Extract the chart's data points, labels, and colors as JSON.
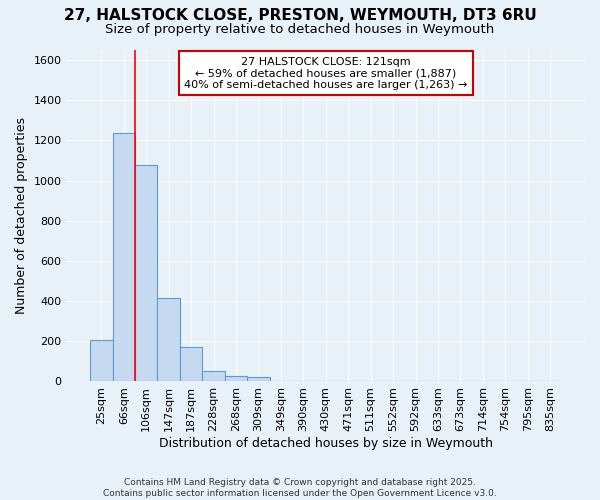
{
  "title": "27, HALSTOCK CLOSE, PRESTON, WEYMOUTH, DT3 6RU",
  "subtitle": "Size of property relative to detached houses in Weymouth",
  "xlabel": "Distribution of detached houses by size in Weymouth",
  "ylabel": "Number of detached properties",
  "categories": [
    "25sqm",
    "66sqm",
    "106sqm",
    "147sqm",
    "187sqm",
    "228sqm",
    "268sqm",
    "309sqm",
    "349sqm",
    "390sqm",
    "430sqm",
    "471sqm",
    "511sqm",
    "552sqm",
    "592sqm",
    "633sqm",
    "673sqm",
    "714sqm",
    "754sqm",
    "795sqm",
    "835sqm"
  ],
  "values": [
    205,
    1235,
    1080,
    415,
    170,
    50,
    25,
    20,
    0,
    0,
    0,
    0,
    0,
    0,
    0,
    0,
    0,
    0,
    0,
    0,
    0
  ],
  "bar_color": "#c5d9f0",
  "bar_edge_color": "#5b9bd5",
  "background_color": "#e8f0f8",
  "plot_bg_color": "#e8f0f8",
  "grid_color": "#ffffff",
  "red_line_x": 1.5,
  "ylim": [
    0,
    1650
  ],
  "yticks": [
    0,
    200,
    400,
    600,
    800,
    1000,
    1200,
    1400,
    1600
  ],
  "annotation_text": "27 HALSTOCK CLOSE: 121sqm\n← 59% of detached houses are smaller (1,887)\n40% of semi-detached houses are larger (1,263) →",
  "annotation_box_color": "#ffffff",
  "annotation_edge_color": "#cc0000",
  "footer": "Contains HM Land Registry data © Crown copyright and database right 2025.\nContains public sector information licensed under the Open Government Licence v3.0.",
  "title_fontsize": 11,
  "subtitle_fontsize": 9.5,
  "tick_fontsize": 8,
  "ylabel_fontsize": 9,
  "xlabel_fontsize": 9,
  "annotation_fontsize": 8
}
